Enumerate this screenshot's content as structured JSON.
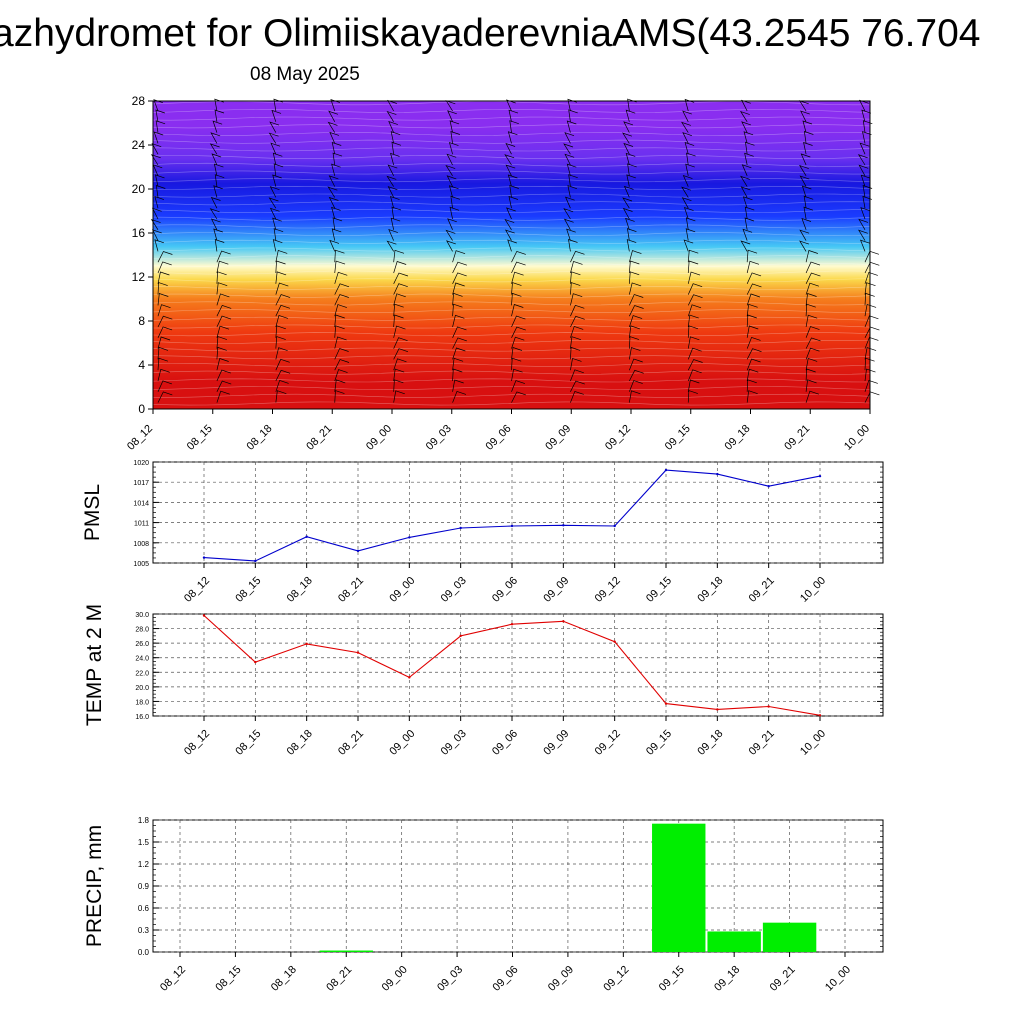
{
  "header": {
    "title": "azhydromet for OlimiiskayaderevniaAMS(43.2545 76.704",
    "date": "08 May 2025"
  },
  "chart_data": [
    {
      "type": "heatmap",
      "name": "cross-section",
      "x_ticks": [
        "08_12",
        "08_15",
        "08_18",
        "08_21",
        "09_00",
        "09_03",
        "09_06",
        "09_09",
        "09_12",
        "09_15",
        "09_18",
        "09_21",
        "10_00"
      ],
      "y_ticks": [
        "0",
        "4",
        "8",
        "12",
        "16",
        "20",
        "24",
        "28"
      ],
      "ylim": [
        0,
        28
      ],
      "color_bands": [
        {
          "from": 0,
          "to": 5,
          "color": "#d81010"
        },
        {
          "from": 5,
          "to": 9,
          "color": "#ef3a10"
        },
        {
          "from": 9,
          "to": 11,
          "color": "#f57d1c"
        },
        {
          "from": 11,
          "to": 12.5,
          "color": "#fbd84a"
        },
        {
          "from": 12.5,
          "to": 13.5,
          "color": "#fffbd0"
        },
        {
          "from": 13.5,
          "to": 16,
          "color": "#46c8f5"
        },
        {
          "from": 16,
          "to": 19,
          "color": "#1a3cff"
        },
        {
          "from": 19,
          "to": 22,
          "color": "#1818e0"
        },
        {
          "from": 22,
          "to": 23.5,
          "color": "#6a30f0"
        },
        {
          "from": 23.5,
          "to": 28,
          "color": "#8a2ef0"
        }
      ]
    },
    {
      "type": "line",
      "name": "pmsl",
      "ylabel": "PMSL",
      "categories": [
        "08_12",
        "08_15",
        "08_18",
        "08_21",
        "09_00",
        "09_03",
        "09_06",
        "09_09",
        "09_12",
        "09_15",
        "09_18",
        "09_21",
        "10_00"
      ],
      "values": [
        1005.8,
        1005.3,
        1008.9,
        1006.8,
        1008.8,
        1010.2,
        1010.5,
        1010.6,
        1010.5,
        1018.8,
        1018.2,
        1016.4,
        1017.9
      ],
      "ylim": [
        1005,
        1020
      ],
      "y_ticks": [
        "1005",
        "1008",
        "1011",
        "1014",
        "1017",
        "1020"
      ],
      "color": "#0000cc",
      "grid": true
    },
    {
      "type": "line",
      "name": "temp",
      "ylabel": "TEMP at 2 M",
      "categories": [
        "08_12",
        "08_15",
        "08_18",
        "08_21",
        "09_00",
        "09_03",
        "09_06",
        "09_09",
        "09_12",
        "09_15",
        "09_18",
        "09_21",
        "10_00"
      ],
      "values": [
        29.8,
        23.4,
        25.9,
        24.7,
        21.3,
        27.0,
        28.6,
        29.0,
        26.2,
        17.7,
        16.9,
        17.3,
        16.1
      ],
      "ylim": [
        16,
        30
      ],
      "y_ticks": [
        "16.0",
        "18.0",
        "20.0",
        "22.0",
        "24.0",
        "26.0",
        "28.0",
        "30.0"
      ],
      "color": "#e00000",
      "grid": true
    },
    {
      "type": "bar",
      "name": "precip",
      "ylabel": "PRECIP, mm",
      "categories": [
        "08_12",
        "08_15",
        "08_18",
        "08_21",
        "09_00",
        "09_03",
        "09_06",
        "09_09",
        "09_12",
        "09_15",
        "09_18",
        "09_21",
        "10_00"
      ],
      "values": [
        0,
        0,
        0,
        0.02,
        0,
        0,
        0,
        0,
        0,
        1.75,
        0.28,
        0.4,
        0
      ],
      "ylim": [
        0,
        1.8
      ],
      "y_ticks": [
        "0.0",
        "0.3",
        "0.6",
        "0.9",
        "1.2",
        "1.5",
        "1.8"
      ],
      "color": "#00ee00",
      "grid": true
    }
  ]
}
